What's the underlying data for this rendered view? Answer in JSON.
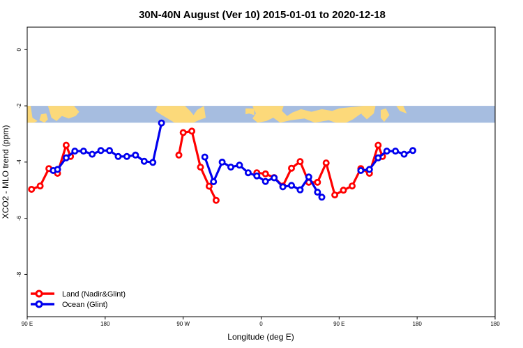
{
  "chart_data": {
    "type": "line",
    "title": "30N-40N August (Ver 10)   2015-01-01 to 2020-12-18",
    "xlabel": "Longitude (deg E)",
    "ylabel": "XCO2 - MLO trend (ppm)",
    "xlim": [
      -90,
      180
    ],
    "ylim": [
      -9.5,
      0.8
    ],
    "x_ticks": [
      {
        "value": -90,
        "label": "90 E"
      },
      {
        "value": -45,
        "label": "180"
      },
      {
        "value": 0,
        "label": "90 W"
      },
      {
        "value": 45,
        "label": "0"
      },
      {
        "value": 90,
        "label": "90 E"
      },
      {
        "value": 135,
        "label": "180"
      }
    ],
    "y_ticks": [
      0,
      -2,
      -4,
      -6,
      -8
    ],
    "map_band": {
      "y_top": -2.0,
      "y_bottom": -2.6,
      "ocean_color": "#a6bde0",
      "land_color": "#fcd97a"
    },
    "series": [
      {
        "name": "Land (Nadir&Glint)",
        "color": "#ff0000",
        "segments": [
          [
            [
              -87.5,
              -4.97
            ],
            [
              -82.5,
              -4.85
            ],
            [
              -77.5,
              -4.23
            ],
            [
              -72.5,
              -4.4
            ],
            [
              -67.5,
              -3.4
            ],
            [
              -65,
              -3.8
            ]
          ],
          [
            [
              -2.5,
              -3.75
            ],
            [
              0,
              -2.95
            ],
            [
              5,
              -2.9
            ],
            [
              10,
              -4.18
            ],
            [
              15,
              -4.86
            ],
            [
              19,
              -5.36
            ]
          ],
          [
            [
              42.5,
              -4.38
            ],
            [
              47.5,
              -4.42
            ],
            [
              52.5,
              -4.55
            ],
            [
              57.5,
              -4.85
            ],
            [
              62.5,
              -4.22
            ],
            [
              67.5,
              -3.98
            ],
            [
              72.5,
              -4.72
            ],
            [
              77.5,
              -4.72
            ],
            [
              82.5,
              -4.03
            ],
            [
              87.5,
              -5.17
            ],
            [
              92.5,
              -5.0
            ],
            [
              97.5,
              -4.85
            ],
            [
              102.5,
              -4.23
            ],
            [
              107.5,
              -4.4
            ],
            [
              112.5,
              -3.4
            ],
            [
              115,
              -3.8
            ]
          ]
        ]
      },
      {
        "name": "Ocean (Glint)",
        "color": "#0000ee",
        "segments": [
          [
            [
              -75,
              -4.3
            ],
            [
              -72.5,
              -4.26
            ],
            [
              -67.5,
              -3.85
            ],
            [
              -62.5,
              -3.61
            ],
            [
              -57.5,
              -3.61
            ],
            [
              -52.5,
              -3.72
            ],
            [
              -47.5,
              -3.59
            ],
            [
              -42.5,
              -3.59
            ],
            [
              -37.5,
              -3.8
            ],
            [
              -32.5,
              -3.8
            ],
            [
              -27.5,
              -3.75
            ],
            [
              -22.5,
              -3.97
            ],
            [
              -17.5,
              -4.01
            ],
            [
              -12.5,
              -2.61
            ]
          ],
          [
            [
              12.5,
              -3.82
            ],
            [
              17.5,
              -4.7
            ],
            [
              22.5,
              -4.0
            ],
            [
              27.5,
              -4.18
            ],
            [
              32.5,
              -4.11
            ],
            [
              37.5,
              -4.38
            ],
            [
              42.5,
              -4.49
            ],
            [
              47.5,
              -4.69
            ],
            [
              52.5,
              -4.56
            ],
            [
              57.5,
              -4.88
            ],
            [
              62.5,
              -4.83
            ],
            [
              67.5,
              -4.99
            ],
            [
              72.5,
              -4.53
            ],
            [
              77.5,
              -5.07
            ],
            [
              80,
              -5.25
            ]
          ],
          [
            [
              102.5,
              -4.3
            ],
            [
              107.5,
              -4.26
            ],
            [
              112.5,
              -3.85
            ],
            [
              117.5,
              -3.61
            ],
            [
              122.5,
              -3.61
            ],
            [
              127.5,
              -3.72
            ],
            [
              132.5,
              -3.59
            ]
          ]
        ]
      }
    ],
    "legend": {
      "position": "bottom-left",
      "entries": [
        "Land (Nadir&Glint)",
        "Ocean (Glint)"
      ]
    }
  }
}
